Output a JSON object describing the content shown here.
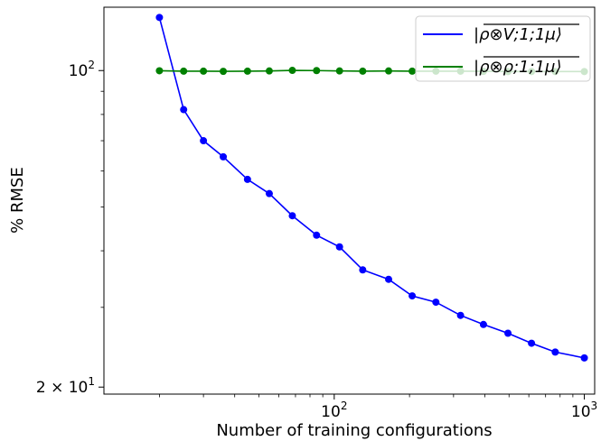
{
  "chart_data": {
    "type": "line",
    "xscale": "log",
    "yscale": "log",
    "xlabel": "Number of training configurations",
    "ylabel": "% RMSE",
    "xlim": [
      12,
      1100
    ],
    "ylim": [
      19.3,
      138
    ],
    "xticks": [
      {
        "value": 100,
        "base": "10",
        "exp": "2"
      },
      {
        "value": 1000,
        "base": "10",
        "exp": "3"
      }
    ],
    "yticks": [
      {
        "value": 100,
        "mantissa": "",
        "base": "10",
        "exp": "2"
      },
      {
        "value": 20,
        "mantissa": "2 × ",
        "base": "10",
        "exp": "1"
      }
    ],
    "legend_position": "upper right",
    "grid": false,
    "x": [
      20,
      25,
      30,
      36,
      45,
      55,
      68,
      85,
      105,
      130,
      165,
      205,
      255,
      320,
      395,
      495,
      615,
      765,
      1000
    ],
    "series": [
      {
        "name": "|ρ̄⊗V;1;1μ⟩",
        "legend_label": "|ρ⊗V;1;1μ⟩",
        "color": "#0000ff",
        "values": [
          131,
          82,
          70,
          64.5,
          57.5,
          53.5,
          47.8,
          43.3,
          40.8,
          36.3,
          34.6,
          31.8,
          30.8,
          28.8,
          27.5,
          26.3,
          25.0,
          23.9,
          23.2
        ]
      },
      {
        "name": "|ρ̄⊗ρ;1;1μ⟩",
        "legend_label": "|ρ⊗ρ;1;1μ⟩",
        "color": "#008000",
        "values": [
          99.9,
          99.7,
          99.7,
          99.6,
          99.7,
          99.8,
          100.1,
          100.0,
          99.8,
          99.7,
          99.8,
          99.7,
          99.7,
          99.7,
          99.6,
          99.5,
          99.5,
          99.5,
          99.5
        ]
      }
    ]
  }
}
